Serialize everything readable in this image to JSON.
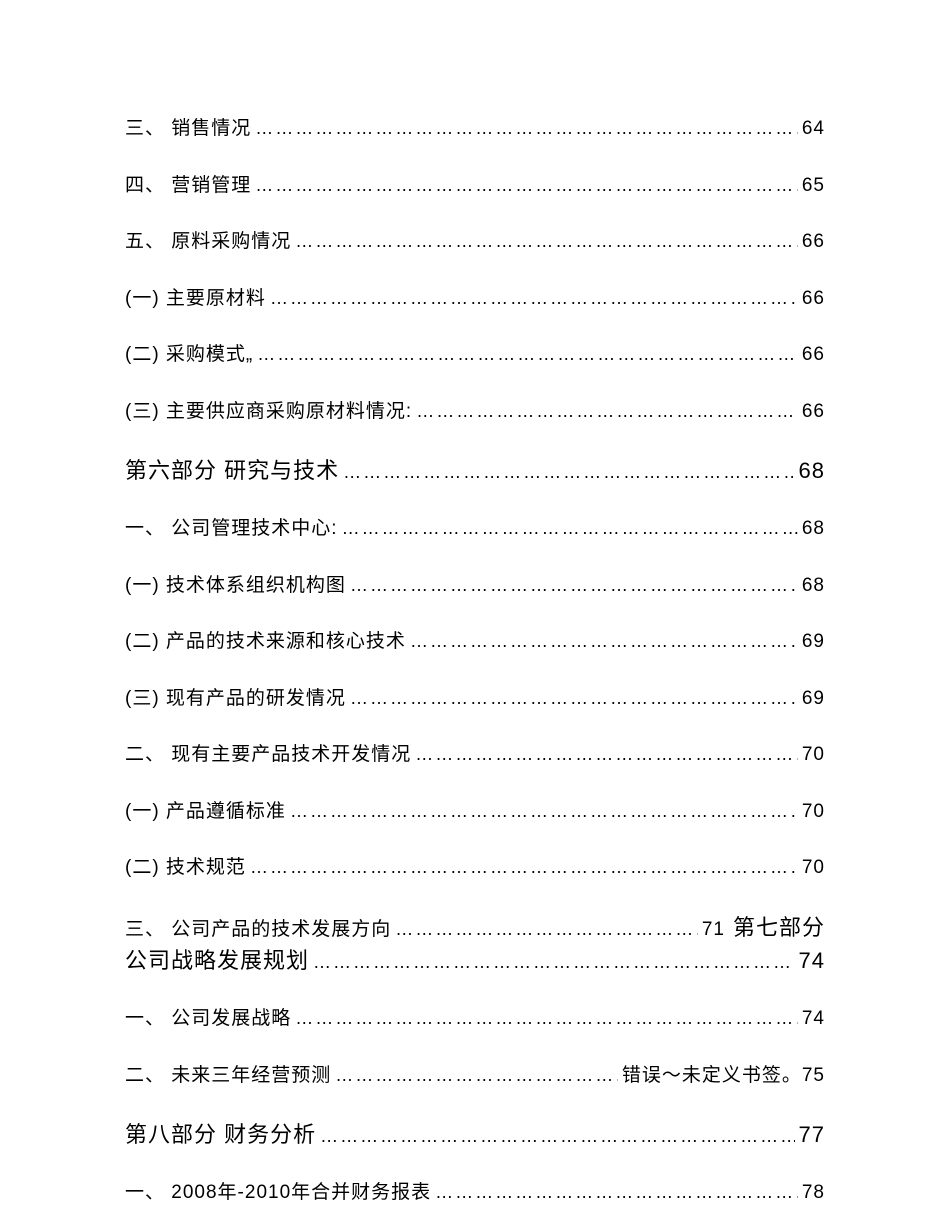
{
  "document": {
    "background_color": "#ffffff",
    "text_color": "#000000",
    "base_fontsize": 19,
    "section_fontsize": 22,
    "line_spacing": 28,
    "dots": "………………………………………………………………………………………………………………"
  },
  "entries": [
    {
      "type": "item",
      "label": "三、  销售情况",
      "page": " 64"
    },
    {
      "type": "item",
      "label": "四、  营销管理",
      "page": " 65"
    },
    {
      "type": "item",
      "label": "五、  原料采购情况",
      "page": " 66"
    },
    {
      "type": "sub",
      "label": "(一) 主要原材料",
      "page": "66"
    },
    {
      "type": "sub",
      "label": "(二) 采购模式„",
      "page": "66"
    },
    {
      "type": "sub",
      "label": "(三) 主要供应商采购原材料情况:",
      "page": "66"
    },
    {
      "type": "section",
      "label": "第六部分  研究与技术",
      "page": " 68"
    },
    {
      "type": "item",
      "label": "一、  公司管理技术中心:",
      "page": " 68"
    },
    {
      "type": "sub",
      "label": "(一) 技术体系组织机构图",
      "page": "68"
    },
    {
      "type": "sub",
      "label": "(二) 产品的技术来源和核心技术",
      "page": "69"
    },
    {
      "type": "sub",
      "label": "(三) 现有产品的研发情况",
      "page": "69"
    },
    {
      "type": "item",
      "label": "二、  现有主要产品技术开发情况",
      "page": " 70"
    },
    {
      "type": "sub",
      "label": "(一) 产品遵循标准",
      "page": " 70"
    },
    {
      "type": "sub",
      "label": "(二) 技术规范",
      "page": " 70"
    },
    {
      "type": "wrapped",
      "label1": "三、  公司产品的技术发展方向",
      "page1": " 71",
      "trailing": " 第七部分",
      "label2": " 公司战略发展规划",
      "page2": " 74"
    },
    {
      "type": "item",
      "label": "一、  公司发展战略",
      "page": " 74"
    },
    {
      "type": "item_special",
      "label": "二、  未来三年经营预测",
      "page": " 错误～未定义书签。75"
    },
    {
      "type": "section",
      "label": "第八部分  财务分析",
      "page": " 77"
    },
    {
      "type": "item",
      "label": "一、  2008年-2010年合并财务报表",
      "page": " 78"
    }
  ]
}
